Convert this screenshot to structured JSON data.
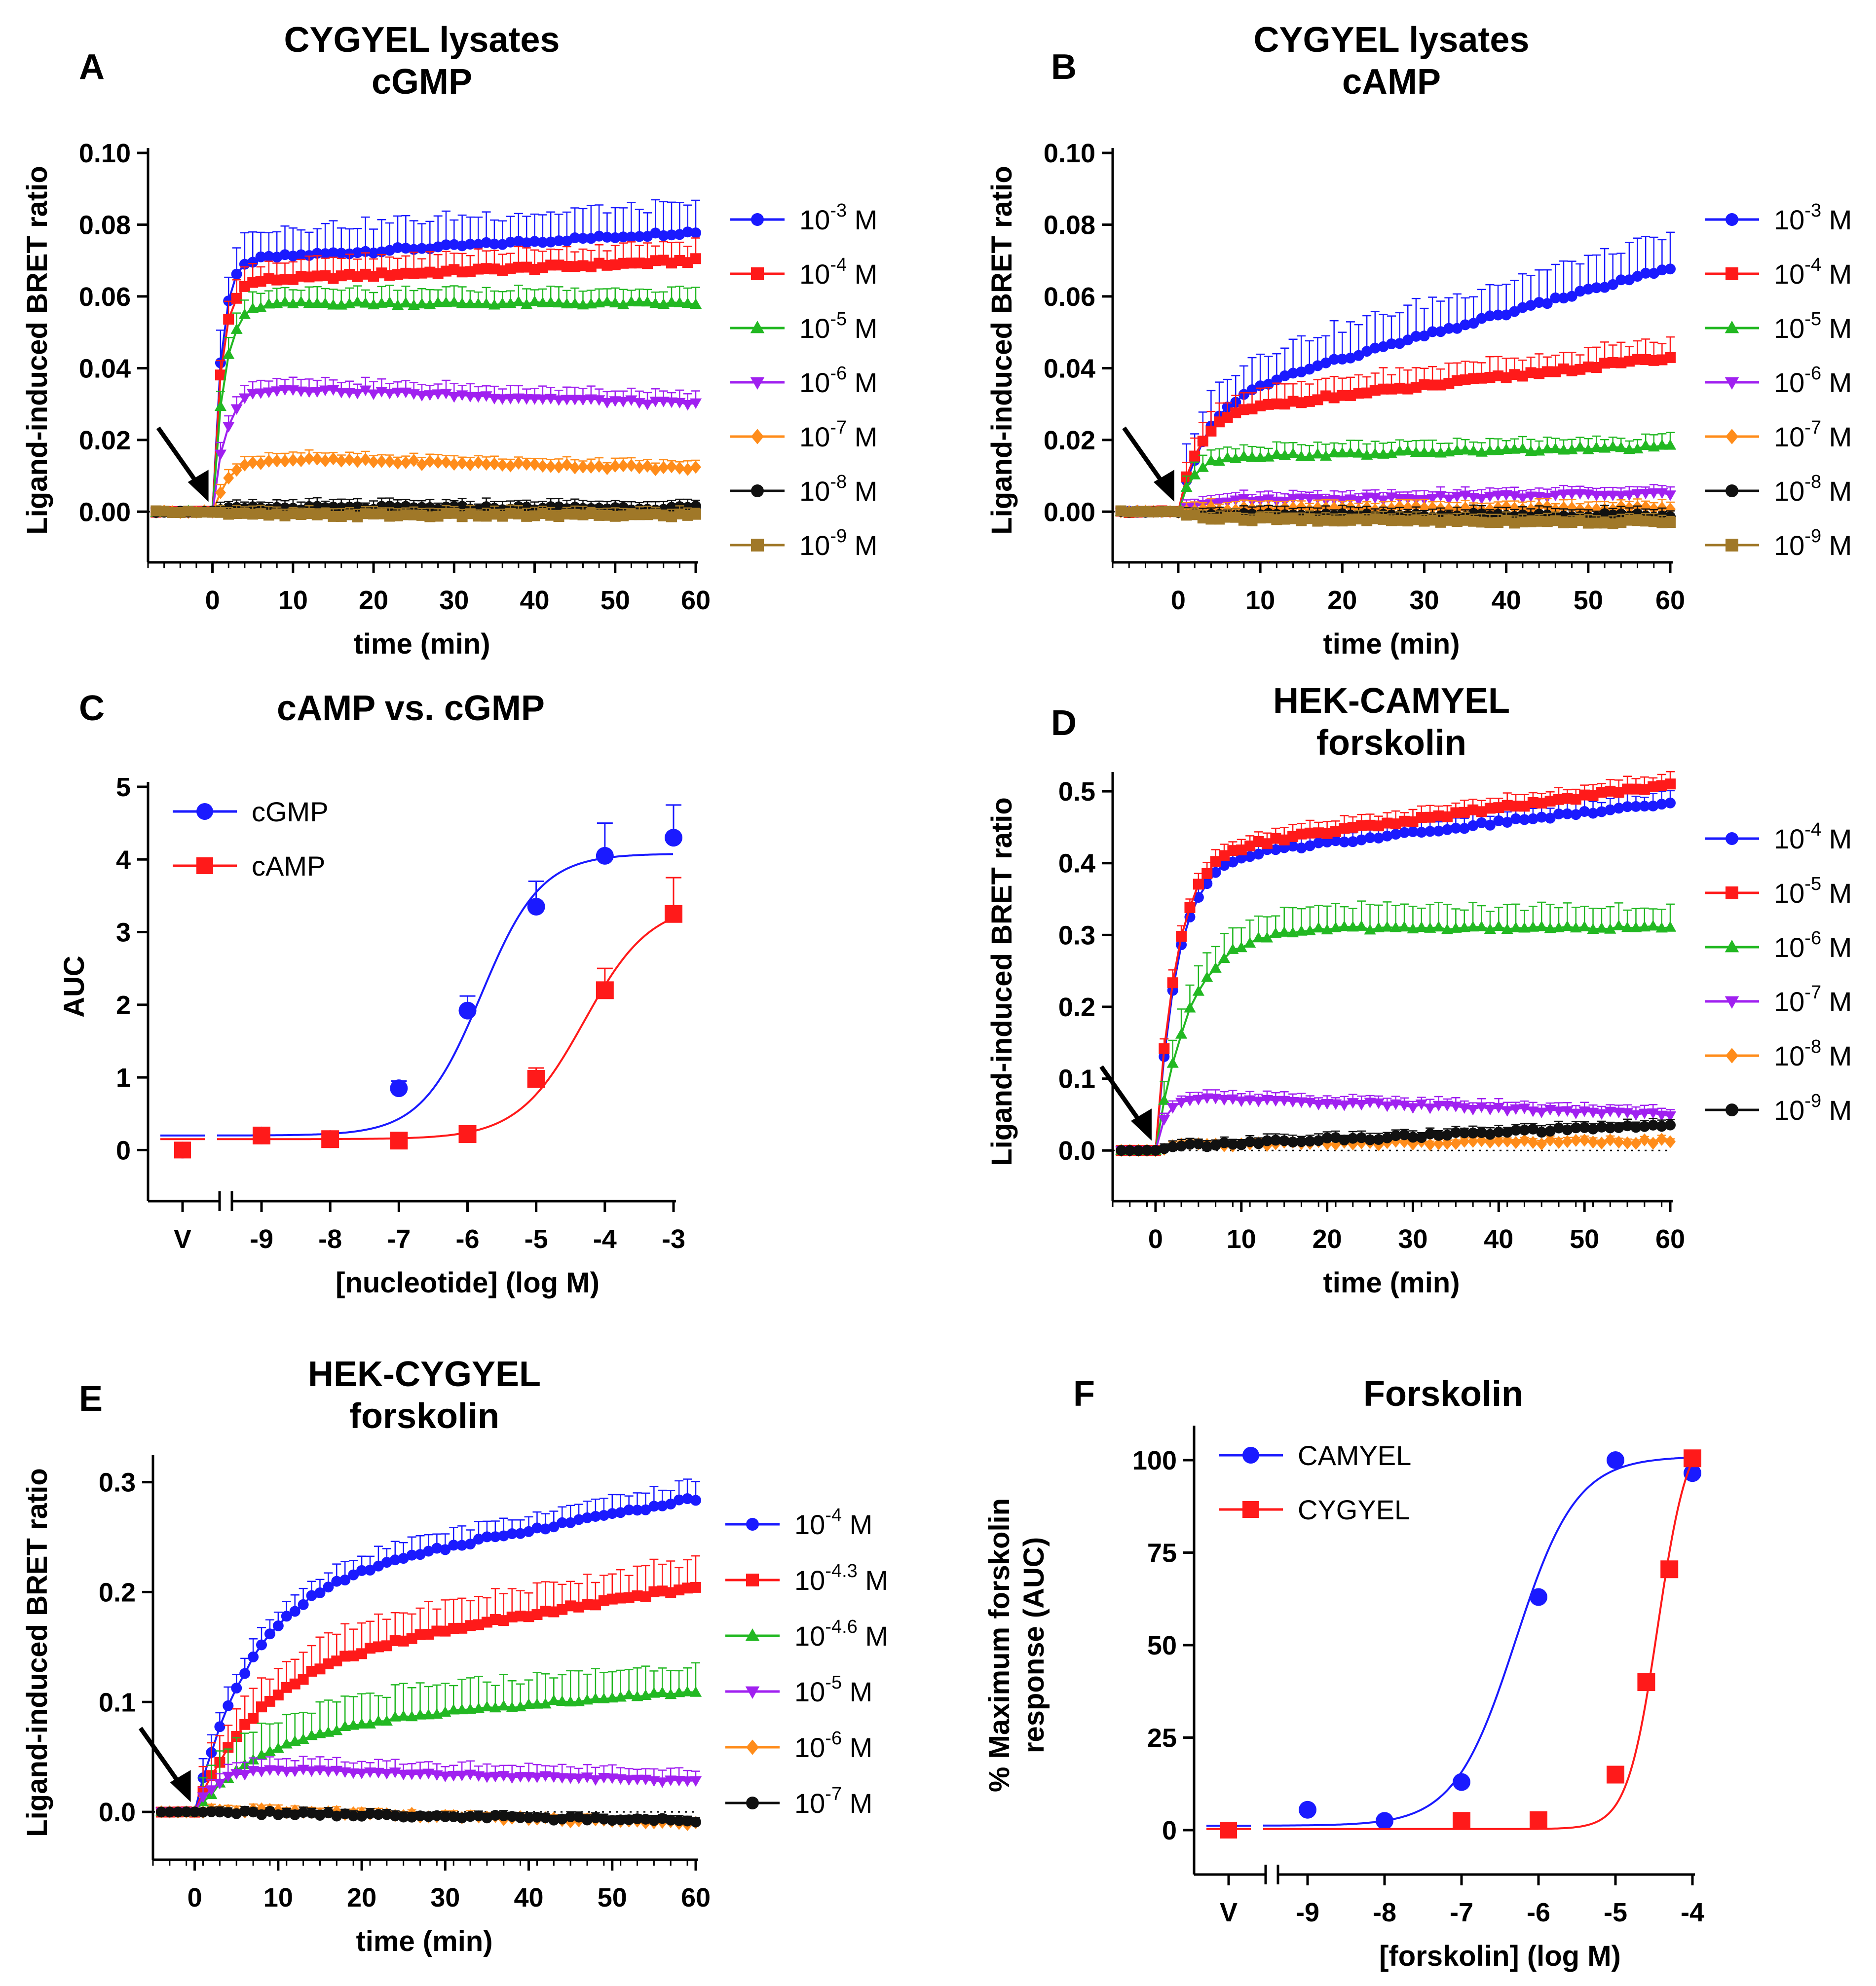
{
  "colors": {
    "blue": "#1a1aff",
    "red": "#ff1a1a",
    "green": "#22b822",
    "purple": "#a020f0",
    "orange": "#ff8c1a",
    "black": "#111111",
    "brown": "#a07828"
  },
  "chart_data": [
    {
      "panel": "A",
      "type": "line",
      "title": [
        "CYGYEL lysates",
        "cGMP"
      ],
      "xlabel": "time (min)",
      "ylabel": "Ligand-induced BRET ratio",
      "xlim": [
        -8,
        60
      ],
      "ylim": [
        -0.01,
        0.1
      ],
      "xticks": [
        0,
        10,
        20,
        30,
        40,
        50,
        60
      ],
      "yticks": [
        0.0,
        0.02,
        0.04,
        0.06,
        0.08,
        0.1
      ],
      "ytick_labels": [
        "0.00",
        "0.02",
        "0.04",
        "0.06",
        "0.08",
        "0.10"
      ],
      "arrow_at": 0,
      "kinetic": true,
      "series": [
        {
          "name": "10^-3 M",
          "mantissa": "10",
          "exp": "-3",
          "unit": "M",
          "color": "blue",
          "marker": "circle",
          "plateau": 0.07,
          "k": 0.9,
          "drift": 0.008,
          "err": 0.008
        },
        {
          "name": "10^-4 M",
          "mantissa": "10",
          "exp": "-4",
          "unit": "M",
          "color": "red",
          "marker": "square",
          "plateau": 0.064,
          "k": 0.9,
          "drift": 0.006,
          "err": 0.005
        },
        {
          "name": "10^-5 M",
          "mantissa": "10",
          "exp": "-5",
          "unit": "M",
          "color": "green",
          "marker": "triangle-up",
          "plateau": 0.058,
          "k": 0.7,
          "drift": 0.0,
          "err": 0.004
        },
        {
          "name": "10^-6 M",
          "mantissa": "10",
          "exp": "-6",
          "unit": "M",
          "color": "purple",
          "marker": "triangle-down",
          "plateau": 0.035,
          "k": 0.6,
          "drift": -0.005,
          "err": 0.003
        },
        {
          "name": "10^-7 M",
          "mantissa": "10",
          "exp": "-7",
          "unit": "M",
          "color": "orange",
          "marker": "diamond",
          "plateau": 0.015,
          "k": 0.5,
          "drift": -0.003,
          "err": 0.002
        },
        {
          "name": "10^-8 M",
          "mantissa": "10",
          "exp": "-8",
          "unit": "M",
          "color": "black",
          "marker": "circle",
          "plateau": 0.001,
          "k": 0.5,
          "drift": 0.0,
          "err": 0.002
        },
        {
          "name": "10^-9 M",
          "mantissa": "10",
          "exp": "-9",
          "unit": "M",
          "color": "brown",
          "marker": "square",
          "plateau": -0.001,
          "k": 0.5,
          "drift": 0.0,
          "err": 0.002
        }
      ]
    },
    {
      "panel": "B",
      "type": "line",
      "title": [
        "CYGYEL lysates",
        "cAMP"
      ],
      "xlabel": "time (min)",
      "ylabel": "Ligand-induced BRET ratio",
      "xlim": [
        -8,
        60
      ],
      "ylim": [
        -0.01,
        0.1
      ],
      "xticks": [
        0,
        10,
        20,
        30,
        40,
        50,
        60
      ],
      "yticks": [
        0.0,
        0.02,
        0.04,
        0.06,
        0.08,
        0.1
      ],
      "ytick_labels": [
        "0.00",
        "0.02",
        "0.04",
        "0.06",
        "0.08",
        "0.10"
      ],
      "arrow_at": 0,
      "kinetic": true,
      "series": [
        {
          "name": "10^-3 M",
          "mantissa": "10",
          "exp": "-3",
          "unit": "M",
          "color": "blue",
          "marker": "circle",
          "plateau": 0.03,
          "k": 0.3,
          "drift": 0.038,
          "err": 0.009
        },
        {
          "name": "10^-4 M",
          "mantissa": "10",
          "exp": "-4",
          "unit": "M",
          "color": "red",
          "marker": "square",
          "plateau": 0.027,
          "k": 0.4,
          "drift": 0.016,
          "err": 0.005
        },
        {
          "name": "10^-5 M",
          "mantissa": "10",
          "exp": "-5",
          "unit": "M",
          "color": "green",
          "marker": "triangle-up",
          "plateau": 0.015,
          "k": 0.6,
          "drift": 0.003,
          "err": 0.003
        },
        {
          "name": "10^-6 M",
          "mantissa": "10",
          "exp": "-6",
          "unit": "M",
          "color": "purple",
          "marker": "triangle-down",
          "plateau": 0.003,
          "k": 0.5,
          "drift": 0.002,
          "err": 0.002
        },
        {
          "name": "10^-7 M",
          "mantissa": "10",
          "exp": "-7",
          "unit": "M",
          "color": "orange",
          "marker": "diamond",
          "plateau": 0.001,
          "k": 0.5,
          "drift": 0.0,
          "err": 0.002
        },
        {
          "name": "10^-8 M",
          "mantissa": "10",
          "exp": "-8",
          "unit": "M",
          "color": "black",
          "marker": "circle",
          "plateau": -0.001,
          "k": 0.5,
          "drift": 0.0,
          "err": 0.002
        },
        {
          "name": "10^-9 M",
          "mantissa": "10",
          "exp": "-9",
          "unit": "M",
          "color": "brown",
          "marker": "square",
          "plateau": -0.002,
          "k": 0.5,
          "drift": -0.001,
          "err": 0.002
        }
      ]
    },
    {
      "panel": "C",
      "type": "scatter",
      "title": [
        "cAMP vs. cGMP"
      ],
      "xlabel": "[nucleotide] (log M)",
      "ylabel": "AUC",
      "xlim": [
        -9.5,
        -3
      ],
      "ylim": [
        -0.5,
        5
      ],
      "xticks": [
        -9,
        -8,
        -7,
        -6,
        -5,
        -4,
        -3
      ],
      "yticks": [
        0,
        1,
        2,
        3,
        4,
        5
      ],
      "ytick_labels": [
        "0",
        "1",
        "2",
        "3",
        "4",
        "5"
      ],
      "vehicle_label": "V",
      "legend_position": "top-left",
      "series": [
        {
          "name": "cGMP",
          "color": "blue",
          "marker": "circle",
          "vehicle": 0.0,
          "x": [
            -9,
            -8,
            -7,
            -6,
            -5,
            -4,
            -3
          ],
          "y": [
            0.2,
            0.15,
            0.85,
            1.92,
            3.35,
            4.05,
            4.3
          ],
          "err": [
            0.05,
            0.05,
            0.1,
            0.2,
            0.35,
            0.45,
            0.45
          ],
          "fit": {
            "bottom": 0.2,
            "top": 4.08,
            "logEC50": -5.8,
            "hill": 1.0
          }
        },
        {
          "name": "cAMP",
          "color": "red",
          "marker": "square",
          "vehicle": 0.0,
          "x": [
            -9,
            -8,
            -7,
            -6,
            -5,
            -4,
            -3
          ],
          "y": [
            0.2,
            0.15,
            0.13,
            0.22,
            0.98,
            2.2,
            3.25
          ],
          "err": [
            0.03,
            0.03,
            0.03,
            0.05,
            0.15,
            0.3,
            0.5
          ],
          "fit": {
            "bottom": 0.15,
            "top": 3.4,
            "logEC50": -4.3,
            "hill": 0.9
          }
        }
      ]
    },
    {
      "panel": "D",
      "type": "line",
      "title": [
        "HEK-CAMYEL",
        "forskolin"
      ],
      "xlabel": "time (min)",
      "ylabel": "Ligand-induced BRET ratio",
      "xlim": [
        -5,
        60
      ],
      "ylim": [
        -0.05,
        0.52
      ],
      "xticks": [
        0,
        10,
        20,
        30,
        40,
        50,
        60
      ],
      "yticks": [
        0.0,
        0.1,
        0.2,
        0.3,
        0.4,
        0.5
      ],
      "ytick_labels": [
        "0.0",
        "0.1",
        "0.2",
        "0.3",
        "0.4",
        "0.5"
      ],
      "arrow_at": 0,
      "kinetic": true,
      "series": [
        {
          "name": "10^-4 M",
          "mantissa": "10",
          "exp": "-4",
          "unit": "M",
          "color": "blue",
          "marker": "circle",
          "plateau": 0.4,
          "k": 0.4,
          "drift": 0.085,
          "err": 0.015
        },
        {
          "name": "10^-5 M",
          "mantissa": "10",
          "exp": "-5",
          "unit": "M",
          "color": "red",
          "marker": "square",
          "plateau": 0.41,
          "k": 0.42,
          "drift": 0.1,
          "err": 0.015
        },
        {
          "name": "10^-6 M",
          "mantissa": "10",
          "exp": "-6",
          "unit": "M",
          "color": "green",
          "marker": "triangle-up",
          "plateau": 0.31,
          "k": 0.25,
          "drift": 0.0,
          "err": 0.03
        },
        {
          "name": "10^-7 M",
          "mantissa": "10",
          "exp": "-7",
          "unit": "M",
          "color": "purple",
          "marker": "triangle-down",
          "plateau": 0.075,
          "k": 0.8,
          "drift": -0.025,
          "err": 0.01
        },
        {
          "name": "10^-8 M",
          "mantissa": "10",
          "exp": "-8",
          "unit": "M",
          "color": "orange",
          "marker": "diamond",
          "plateau": 0.008,
          "k": 0.5,
          "drift": 0.005,
          "err": 0.005
        },
        {
          "name": "10^-9 M",
          "mantissa": "10",
          "exp": "-9",
          "unit": "M",
          "color": "black",
          "marker": "circle",
          "plateau": 0.005,
          "k": 0.5,
          "drift": 0.03,
          "err": 0.008
        }
      ]
    },
    {
      "panel": "E",
      "type": "line",
      "title": [
        "HEK-CYGYEL",
        "forskolin"
      ],
      "xlabel": "time (min)",
      "ylabel": "Ligand-induced BRET ratio",
      "xlim": [
        -5,
        60
      ],
      "ylim": [
        -0.03,
        0.32
      ],
      "xticks": [
        0,
        10,
        20,
        30,
        40,
        50,
        60
      ],
      "yticks": [
        0.0,
        0.1,
        0.2,
        0.3
      ],
      "ytick_labels": [
        "0.0",
        "0.1",
        "0.2",
        "0.3"
      ],
      "arrow_at": 0,
      "kinetic": true,
      "series": [
        {
          "name": "10^-4 M",
          "mantissa": "10",
          "exp": "-4",
          "unit": "M",
          "color": "blue",
          "marker": "circle",
          "plateau": 0.2,
          "k": 0.15,
          "drift": 0.085,
          "err": 0.015
        },
        {
          "name": "10^-4.3 M",
          "mantissa": "10",
          "exp": "-4.3",
          "unit": "M",
          "color": "red",
          "marker": "square",
          "plateau": 0.13,
          "k": 0.13,
          "drift": 0.075,
          "err": 0.025
        },
        {
          "name": "10^-4.6 M",
          "mantissa": "10",
          "exp": "-4.6",
          "unit": "M",
          "color": "green",
          "marker": "triangle-up",
          "plateau": 0.075,
          "k": 0.12,
          "drift": 0.035,
          "err": 0.025
        },
        {
          "name": "10^-5 M",
          "mantissa": "10",
          "exp": "-5",
          "unit": "M",
          "color": "purple",
          "marker": "triangle-down",
          "plateau": 0.04,
          "k": 0.4,
          "drift": -0.012,
          "err": 0.01
        },
        {
          "name": "10^-6 M",
          "mantissa": "10",
          "exp": "-6",
          "unit": "M",
          "color": "orange",
          "marker": "diamond",
          "plateau": 0.003,
          "k": 0.5,
          "drift": -0.014,
          "err": 0.004
        },
        {
          "name": "10^-7 M",
          "mantissa": "10",
          "exp": "-7",
          "unit": "M",
          "color": "black",
          "marker": "circle",
          "plateau": 0.0,
          "k": 0.5,
          "drift": -0.008,
          "err": 0.004
        }
      ]
    },
    {
      "panel": "F",
      "type": "scatter",
      "title": [
        "Forskolin"
      ],
      "xlabel": "[forskolin] (log  M)",
      "ylabel": [
        "% Maximum forskolin",
        "response (AUC)"
      ],
      "xlim": [
        -9.5,
        -4
      ],
      "ylim": [
        -8,
        108
      ],
      "xticks": [
        -9,
        -8,
        -7,
        -6,
        -5,
        -4
      ],
      "yticks": [
        0,
        25,
        50,
        75,
        100
      ],
      "ytick_labels": [
        "0",
        "25",
        "50",
        "75",
        "100"
      ],
      "vehicle_label": "V",
      "legend_position": "top-left",
      "series": [
        {
          "name": "CAMYEL",
          "color": "blue",
          "marker": "circle",
          "vehicle": 0.0,
          "x": [
            -9,
            -8,
            -7,
            -6,
            -5,
            -4
          ],
          "y": [
            5.5,
            2.5,
            13.0,
            63.0,
            100.0,
            96.5
          ],
          "err": [
            0,
            0,
            0,
            0,
            0,
            0
          ],
          "fit": {
            "bottom": 1.2,
            "top": 101.0,
            "logEC50": -6.3,
            "hill": 1.1
          }
        },
        {
          "name": "CYGYEL",
          "color": "red",
          "marker": "square",
          "vehicle": 0.0,
          "x": [
            -7,
            -6,
            -5,
            -4.6,
            -4.3,
            -4
          ],
          "y": [
            2.5,
            2.7,
            15.0,
            40.0,
            70.5,
            100.5
          ],
          "err": [
            0,
            0,
            0,
            0,
            0,
            0
          ],
          "fit": {
            "bottom": 0.3,
            "top": 110.0,
            "logEC50": -4.45,
            "hill": 2.2
          }
        }
      ]
    }
  ]
}
